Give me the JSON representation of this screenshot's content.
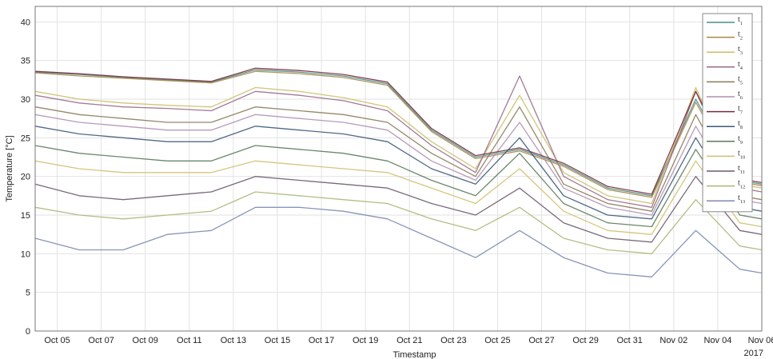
{
  "chart_data": {
    "type": "line",
    "xlabel": "Timestamp",
    "ylabel": "Temperature [°C]",
    "year_label": "2017",
    "ylim": [
      0,
      42
    ],
    "xlim": [
      "2017-10-04",
      "2017-11-06"
    ],
    "y_ticks": [
      0,
      5,
      10,
      15,
      20,
      25,
      30,
      35,
      40
    ],
    "x_ticks": [
      {
        "date": "2017-10-05",
        "label": "Oct 05"
      },
      {
        "date": "2017-10-07",
        "label": "Oct 07"
      },
      {
        "date": "2017-10-09",
        "label": "Oct 09"
      },
      {
        "date": "2017-10-11",
        "label": "Oct 11"
      },
      {
        "date": "2017-10-13",
        "label": "Oct 13"
      },
      {
        "date": "2017-10-15",
        "label": "Oct 15"
      },
      {
        "date": "2017-10-17",
        "label": "Oct 17"
      },
      {
        "date": "2017-10-19",
        "label": "Oct 19"
      },
      {
        "date": "2017-10-21",
        "label": "Oct 21"
      },
      {
        "date": "2017-10-23",
        "label": "Oct 23"
      },
      {
        "date": "2017-10-25",
        "label": "Oct 25"
      },
      {
        "date": "2017-10-27",
        "label": "Oct 27"
      },
      {
        "date": "2017-10-29",
        "label": "Oct 29"
      },
      {
        "date": "2017-10-31",
        "label": "Oct 31"
      },
      {
        "date": "2017-11-02",
        "label": "Nov 02"
      },
      {
        "date": "2017-11-04",
        "label": "Nov 04"
      },
      {
        "date": "2017-11-06",
        "label": "Nov 06"
      }
    ],
    "grid": true,
    "legend_position": "top-right",
    "x": [
      "2017-10-04",
      "2017-10-06",
      "2017-10-08",
      "2017-10-10",
      "2017-10-12",
      "2017-10-14",
      "2017-10-16",
      "2017-10-18",
      "2017-10-20",
      "2017-10-22",
      "2017-10-24",
      "2017-10-26",
      "2017-10-28",
      "2017-10-30",
      "2017-11-01",
      "2017-11-03",
      "2017-11-05",
      "2017-11-06"
    ],
    "series": [
      {
        "name": "t1",
        "sub": "1",
        "base": "t",
        "color": "#4a8f86",
        "values": [
          33.5,
          33.2,
          32.8,
          32.5,
          32.2,
          33.8,
          33.5,
          33.0,
          32.0,
          26.0,
          22.5,
          23.5,
          21.5,
          18.5,
          17.5,
          30.0,
          19.5,
          19.0
        ]
      },
      {
        "name": "t2",
        "sub": "2",
        "base": "t",
        "color": "#a88a4a",
        "values": [
          33.4,
          33.0,
          32.7,
          32.4,
          32.1,
          33.6,
          33.3,
          32.8,
          31.8,
          25.8,
          22.3,
          23.3,
          21.3,
          18.3,
          17.3,
          29.6,
          19.3,
          18.8
        ]
      },
      {
        "name": "t3",
        "sub": "3",
        "base": "t",
        "color": "#c9c06a",
        "values": [
          31.0,
          30.0,
          29.5,
          29.2,
          29.0,
          31.5,
          31.0,
          30.2,
          29.0,
          24.5,
          21.0,
          30.5,
          20.5,
          17.5,
          16.5,
          31.5,
          19.0,
          18.5
        ]
      },
      {
        "name": "t4",
        "sub": "4",
        "base": "t",
        "color": "#9b6a8a",
        "values": [
          30.5,
          29.5,
          29.0,
          28.8,
          28.5,
          31.0,
          30.5,
          29.8,
          28.5,
          24.0,
          20.5,
          33.0,
          20.0,
          17.0,
          16.0,
          31.0,
          18.5,
          18.0
        ]
      },
      {
        "name": "t5",
        "sub": "5",
        "base": "t",
        "color": "#8b7a5a",
        "values": [
          29.0,
          28.0,
          27.5,
          27.0,
          27.0,
          29.0,
          28.5,
          28.0,
          27.0,
          23.0,
          20.0,
          29.0,
          19.0,
          16.5,
          15.5,
          28.0,
          17.5,
          17.0
        ]
      },
      {
        "name": "t6",
        "sub": "6",
        "base": "t",
        "color": "#b090b0",
        "values": [
          28.0,
          27.0,
          26.5,
          26.0,
          26.0,
          28.0,
          27.5,
          27.0,
          26.0,
          22.0,
          19.5,
          27.0,
          18.5,
          16.0,
          15.0,
          26.5,
          17.0,
          16.5
        ]
      },
      {
        "name": "t7",
        "sub": "7",
        "base": "t",
        "color": "#7a2a3a",
        "values": [
          33.6,
          33.3,
          32.9,
          32.6,
          32.3,
          34.0,
          33.7,
          33.2,
          32.2,
          26.2,
          22.7,
          23.7,
          21.7,
          18.7,
          17.7,
          31.0,
          19.7,
          19.2
        ]
      },
      {
        "name": "t8",
        "sub": "8",
        "base": "t",
        "color": "#3a5a7a",
        "values": [
          26.5,
          25.5,
          25.0,
          24.5,
          24.5,
          26.5,
          26.0,
          25.5,
          24.5,
          21.0,
          19.0,
          25.0,
          17.5,
          15.0,
          14.5,
          25.0,
          16.0,
          15.5
        ]
      },
      {
        "name": "t9",
        "sub": "9",
        "base": "t",
        "color": "#5a7a5a",
        "values": [
          24.0,
          23.0,
          22.5,
          22.0,
          22.0,
          24.0,
          23.5,
          23.0,
          22.0,
          19.5,
          17.5,
          23.0,
          16.5,
          14.0,
          13.5,
          23.5,
          15.0,
          14.5
        ]
      },
      {
        "name": "t10",
        "sub": "10",
        "base": "t",
        "color": "#d0c070",
        "values": [
          22.0,
          21.0,
          20.5,
          20.5,
          20.5,
          22.0,
          21.5,
          21.0,
          20.5,
          18.5,
          16.5,
          21.0,
          15.5,
          13.0,
          12.5,
          22.0,
          14.0,
          13.5
        ]
      },
      {
        "name": "t11",
        "sub": "11",
        "base": "t",
        "color": "#6a5a6a",
        "values": [
          19.0,
          17.5,
          17.0,
          17.5,
          18.0,
          20.0,
          19.5,
          19.0,
          18.5,
          16.5,
          15.0,
          18.5,
          14.0,
          12.0,
          11.5,
          20.0,
          13.0,
          12.5
        ]
      },
      {
        "name": "t12",
        "sub": "12",
        "base": "t",
        "color": "#a8b878",
        "values": [
          16.0,
          15.0,
          14.5,
          15.0,
          15.5,
          18.0,
          17.5,
          17.0,
          16.5,
          14.5,
          13.0,
          16.0,
          12.0,
          10.5,
          10.0,
          17.0,
          11.0,
          10.5
        ]
      },
      {
        "name": "t13",
        "sub": "13",
        "base": "t",
        "color": "#7a8ab0",
        "values": [
          12.0,
          10.5,
          10.5,
          12.5,
          13.0,
          16.0,
          16.0,
          15.5,
          14.5,
          12.0,
          9.5,
          13.0,
          9.5,
          7.5,
          7.0,
          13.0,
          8.0,
          7.5
        ]
      }
    ]
  }
}
